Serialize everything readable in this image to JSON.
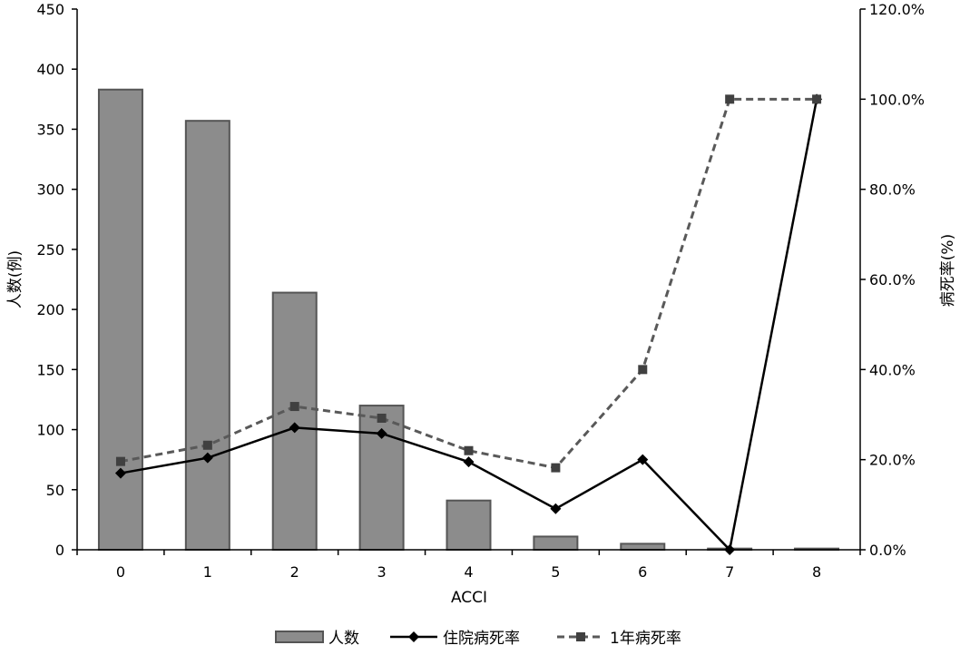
{
  "chart_data": {
    "type": "bar+line",
    "title": "",
    "xlabel": "ACCI",
    "ylabel": "人数(例)",
    "y2label": "病死率(%)",
    "categories": [
      "0",
      "1",
      "2",
      "3",
      "4",
      "5",
      "6",
      "7",
      "8"
    ],
    "ylim": [
      0,
      450
    ],
    "yticks": [
      0,
      50,
      100,
      150,
      200,
      250,
      300,
      350,
      400,
      450
    ],
    "y2lim": [
      0,
      120
    ],
    "y2ticks": [
      "0.0%",
      "20.0%",
      "40.0%",
      "60.0%",
      "80.0%",
      "100.0%",
      "120.0%"
    ],
    "y2tick_values": [
      0,
      20,
      40,
      60,
      80,
      100,
      120
    ],
    "grid": false,
    "legend_position": "bottom",
    "series": [
      {
        "name": "人数",
        "type": "bar",
        "axis": "left",
        "color": "#8c8c8c",
        "values": [
          383,
          357,
          214,
          120,
          41,
          11,
          5,
          1,
          1
        ]
      },
      {
        "name": "住院病死率",
        "type": "line",
        "axis": "right",
        "color": "#000000",
        "marker": "diamond",
        "values": [
          17.0,
          20.4,
          27.1,
          25.8,
          19.5,
          9.1,
          20.0,
          0.0,
          100.0
        ]
      },
      {
        "name": "1年病死率",
        "type": "line",
        "axis": "right",
        "color": "#595959",
        "marker": "square",
        "dashed": true,
        "values": [
          19.6,
          23.2,
          31.8,
          29.2,
          22.0,
          18.2,
          40.0,
          100.0,
          100.0
        ]
      }
    ]
  }
}
